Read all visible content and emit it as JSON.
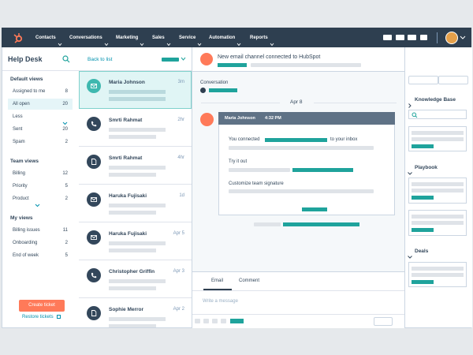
{
  "nav": {
    "items": [
      "Contacts",
      "Conversations",
      "Marketing",
      "Sales",
      "Service",
      "Automation",
      "Reports"
    ]
  },
  "sidebar": {
    "title": "Help Desk",
    "groups": [
      {
        "title": "Default views",
        "items": [
          {
            "label": "Assigned to me",
            "count": 8
          },
          {
            "label": "All open",
            "count": 20
          },
          {
            "label": "Less"
          },
          {
            "label": "Sent",
            "count": 20
          },
          {
            "label": "Spam",
            "count": 2
          }
        ]
      },
      {
        "title": "Team views",
        "items": [
          {
            "label": "Billing",
            "count": 12
          },
          {
            "label": "Priority",
            "count": 5
          },
          {
            "label": "Product",
            "count": 2
          }
        ]
      },
      {
        "title": "My views",
        "items": [
          {
            "label": "Billing issues",
            "count": 11
          },
          {
            "label": "Onboarding",
            "count": 2
          },
          {
            "label": "End of week",
            "count": 5
          }
        ]
      }
    ],
    "create_button": "Create ticket",
    "restore_link": "Restore tickets"
  },
  "list": {
    "back": "Back to list",
    "items": [
      {
        "name": "Maria Johnson",
        "time": "3m"
      },
      {
        "name": "Smrti Rahmat",
        "time": "2hr"
      },
      {
        "name": "Smrti Rahmat",
        "time": "4hr"
      },
      {
        "name": "Haruka Fujisaki",
        "time": "1d"
      },
      {
        "name": "Haruka Fujisaki",
        "time": "Apr 5"
      },
      {
        "name": "Christopher Griffin",
        "time": "Apr 3"
      },
      {
        "name": "Sophie Merror",
        "time": "Apr 2"
      }
    ]
  },
  "conversation": {
    "banner": "New email channel connected to HubSpot",
    "label": "Conversation",
    "date": "Apr 8",
    "card": {
      "sender": "Maria Johnson",
      "time": "4:32 PM",
      "connect_prefix": "You connected",
      "connect_suffix": "to your inbox",
      "try": "Try it out",
      "customize": "Customize team signature"
    },
    "tabs": [
      "Email",
      "Comment"
    ],
    "placeholder": "Write a message"
  },
  "right_panel": {
    "sections": [
      "Knowledge Base",
      "Playbook",
      "Deals"
    ]
  }
}
